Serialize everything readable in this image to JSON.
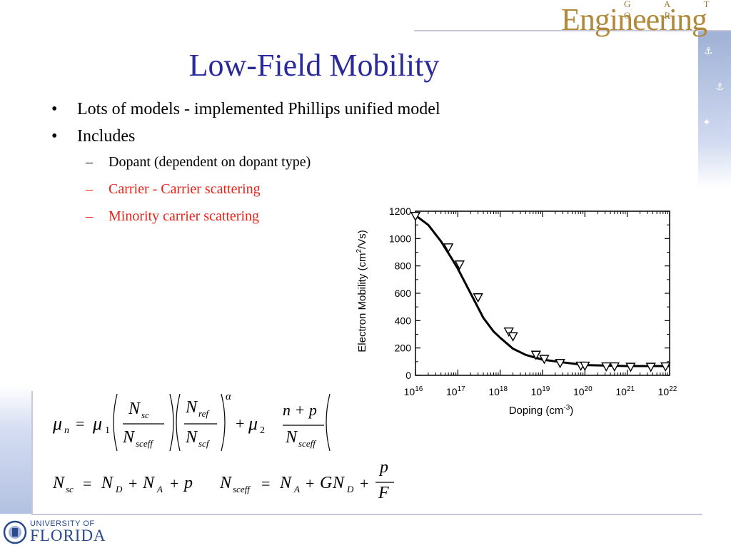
{
  "slide": {
    "title": "Low-Field Mobility",
    "bullets": [
      {
        "text": "Lots of models - implemented Phillips unified model"
      },
      {
        "text": "Includes",
        "sub": [
          {
            "text": "Dopant (dependent on dopant type)",
            "color": "#000000"
          },
          {
            "text": "Carrier - Carrier scattering",
            "color": "#e8231a"
          },
          {
            "text": "Minority carrier scattering",
            "color": "#e8231a"
          }
        ]
      }
    ]
  },
  "logos": {
    "engineering_small": "G A T O R",
    "engineering": "Engineering",
    "uf_small": "UNIVERSITY OF",
    "uf": "FLORIDA"
  },
  "chart_data": {
    "type": "line",
    "xlabel_base": "Doping (cm",
    "xlabel_sup": "-3",
    "xlabel_tail": ")",
    "ylabel_base": "Electron Mobility (cm",
    "ylabel_sup": "2",
    "ylabel_tail": "/Vs)",
    "x_log": true,
    "xlim": [
      1e+16,
      1e+22
    ],
    "ylim": [
      0,
      1200
    ],
    "y_ticks": [
      "0",
      "200",
      "400",
      "600",
      "800",
      "1000",
      "1200"
    ],
    "x_ticks": [
      {
        "base": "10",
        "exp": "16"
      },
      {
        "base": "10",
        "exp": "17"
      },
      {
        "base": "10",
        "exp": "18"
      },
      {
        "base": "10",
        "exp": "19"
      },
      {
        "base": "10",
        "exp": "20"
      },
      {
        "base": "10",
        "exp": "21"
      },
      {
        "base": "10",
        "exp": "22"
      }
    ],
    "series": [
      {
        "marker": "triangle-down",
        "line_x": [
          1e+16,
          2e+16,
          4e+16,
          7e+16,
          1e+17,
          2e+17,
          4e+17,
          7e+17,
          1e+18,
          2e+18,
          4e+18,
          7e+18,
          1e+19,
          3e+19,
          1e+20,
          1e+21,
          1e+22
        ],
        "line_y": [
          1170,
          1100,
          980,
          860,
          780,
          600,
          420,
          320,
          275,
          195,
          150,
          128,
          115,
          95,
          75,
          68,
          68
        ],
        "points_x": [
          1e+16,
          6e+16,
          1.1e+17,
          3e+17,
          1.6e+18,
          2e+18,
          7e+18,
          1.1e+19,
          2.6e+19,
          8e+19,
          1e+20,
          3.2e+20,
          5e+20,
          1.2e+21,
          3.6e+21,
          8e+21
        ],
        "points_y": [
          1165,
          935,
          810,
          570,
          320,
          285,
          150,
          120,
          90,
          70,
          70,
          65,
          65,
          62,
          62,
          65
        ]
      }
    ]
  },
  "equations": {
    "mu": "μ",
    "sub_n": "n",
    "equals": "=",
    "sub_1": "1",
    "sub_2": "2",
    "N": "N",
    "sc": "sc",
    "sceff": "sceff",
    "ref": "ref",
    "scf": "scf",
    "alpha": "α",
    "plus": "+",
    "n_plus_p": "n + p",
    "rhs1": "N",
    "sub_D": "D",
    "sub_A": "A",
    "p": "p",
    "G": "G",
    "F": "F"
  }
}
